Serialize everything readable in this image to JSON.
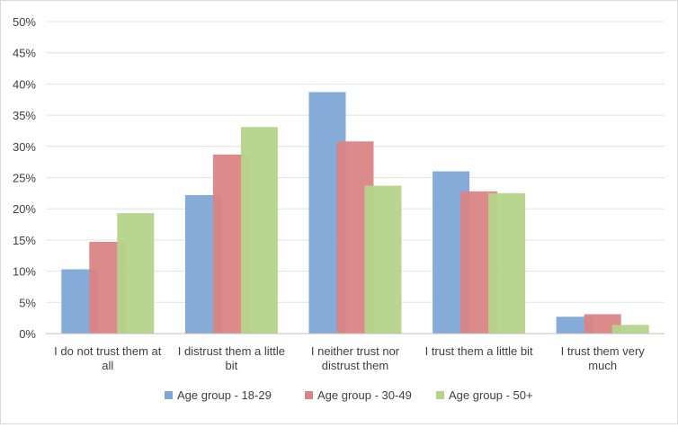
{
  "chart_data": {
    "type": "bar",
    "title": "",
    "xlabel": "",
    "ylabel": "",
    "ylim": [
      0,
      50
    ],
    "ytick_step": 5,
    "ytick_suffix": "%",
    "grid": true,
    "legend_position": "bottom",
    "categories": [
      [
        "I do not trust them at",
        "all"
      ],
      [
        "I distrust them a little",
        "bit"
      ],
      [
        "I neither trust nor",
        "distrust them"
      ],
      [
        "I trust them a little bit"
      ],
      [
        "I trust them very",
        "much"
      ]
    ],
    "series": [
      {
        "name": "Age group - 18-29",
        "color": "#7ea6d6",
        "values": [
          10.3,
          22.2,
          38.7,
          26.0,
          2.7
        ]
      },
      {
        "name": "Age group - 30-49",
        "color": "#da8484",
        "values": [
          14.7,
          28.7,
          30.8,
          22.8,
          3.1
        ]
      },
      {
        "name": "Age group - 50+",
        "color": "#b5d48a",
        "values": [
          19.3,
          33.1,
          23.7,
          22.5,
          1.4
        ]
      }
    ]
  }
}
